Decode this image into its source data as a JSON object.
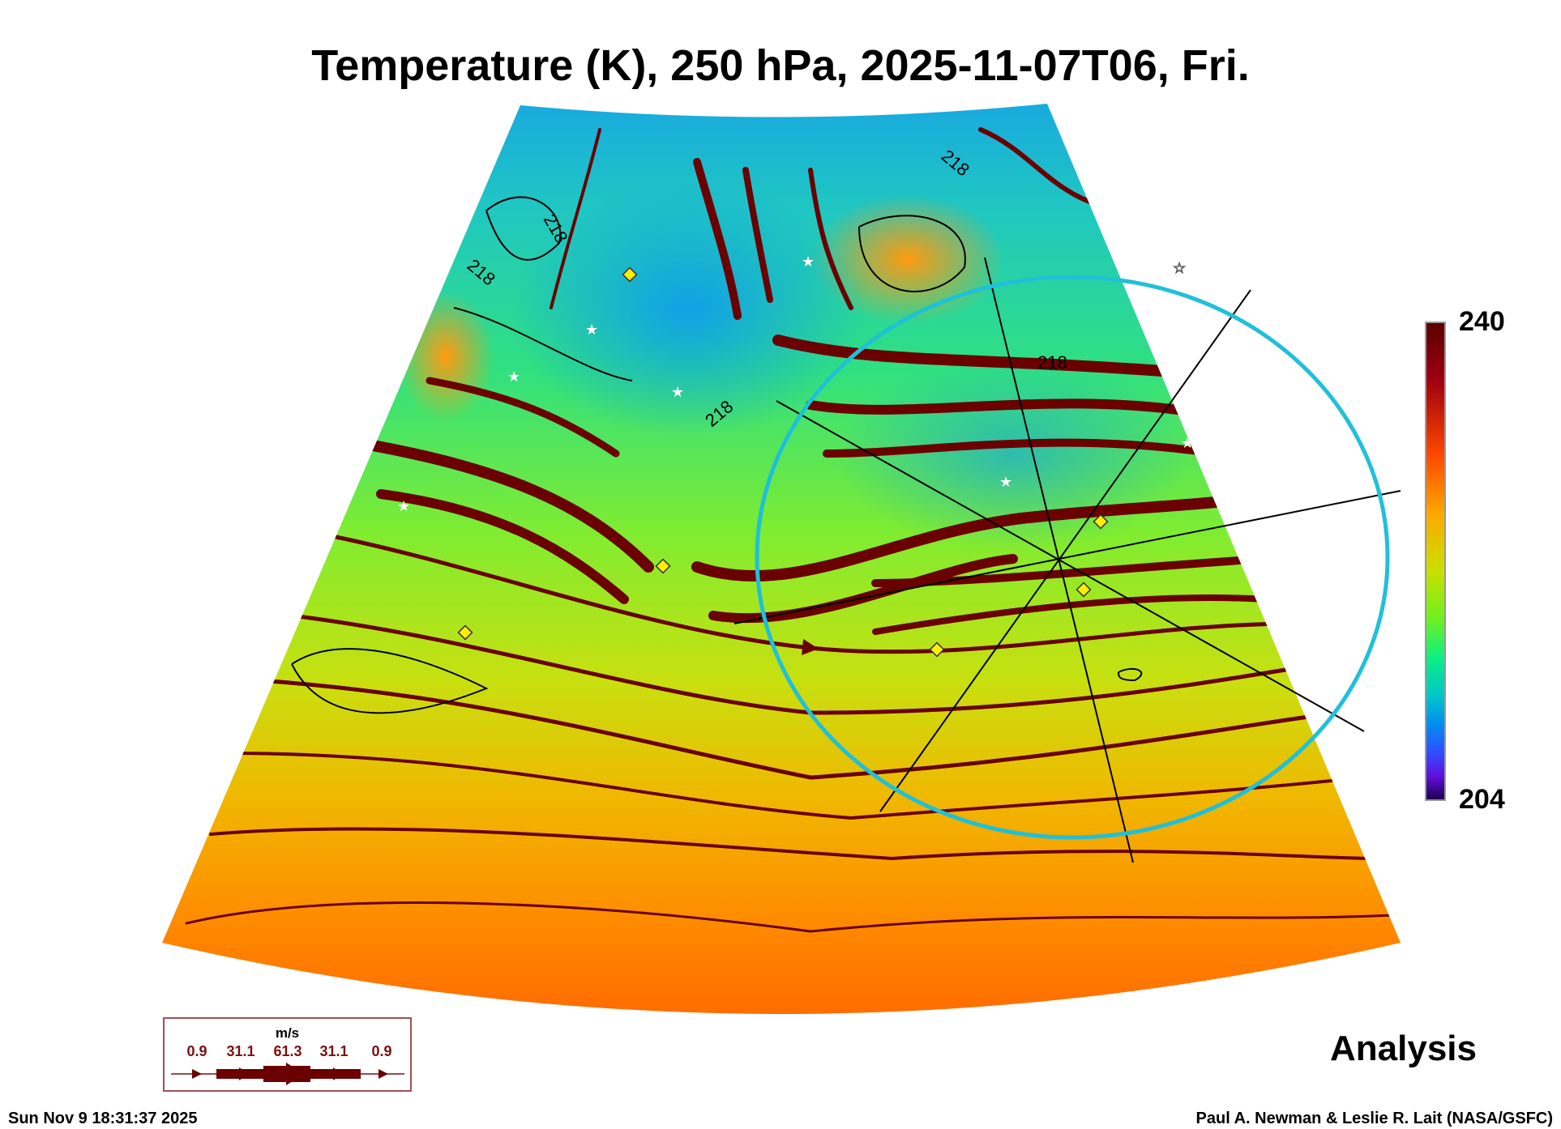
{
  "title": "Temperature (K), 250 hPa, 2025-11-07T06, Fri.",
  "colorbar": {
    "max_label": "240",
    "min_label": "204",
    "max": 240,
    "min": 204
  },
  "contour_labels": [
    "218",
    "218",
    "218",
    "218",
    "218"
  ],
  "legend": {
    "unit": "m/s",
    "values": [
      "0.9",
      "31.1",
      "61.3",
      "31.1",
      "0.9"
    ]
  },
  "analysis_label": "Analysis",
  "timestamp": "Sun Nov  9 18:31:37 2025",
  "credit": "Paul A. Newman & Leslie R. Lait (NASA/GSFC)",
  "colors": {
    "streamline": "#6a0000",
    "circle": "#20c0d8",
    "marker": "#ffee00"
  }
}
